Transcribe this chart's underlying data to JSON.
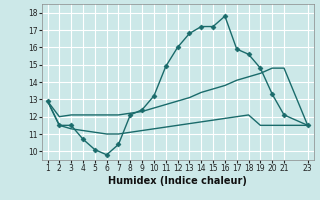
{
  "title": "",
  "xlabel": "Humidex (Indice chaleur)",
  "ylabel": "",
  "background_color": "#cce8e8",
  "grid_color": "#ffffff",
  "line_color": "#1a6b6b",
  "x_ticks": [
    1,
    2,
    3,
    4,
    5,
    6,
    7,
    8,
    9,
    10,
    11,
    12,
    13,
    14,
    15,
    16,
    17,
    18,
    19,
    20,
    21,
    23
  ],
  "ylim": [
    9.5,
    18.5
  ],
  "xlim": [
    0.5,
    23.5
  ],
  "yticks": [
    10,
    11,
    12,
    13,
    14,
    15,
    16,
    17,
    18
  ],
  "series": [
    {
      "x": [
        1,
        2,
        3,
        4,
        5,
        6,
        7,
        8,
        9,
        10,
        11,
        12,
        13,
        14,
        15,
        16,
        17,
        18,
        19,
        20,
        21,
        23
      ],
      "y": [
        12.9,
        11.5,
        11.5,
        10.7,
        10.1,
        9.8,
        10.4,
        12.1,
        12.4,
        13.2,
        14.9,
        16.0,
        16.8,
        17.2,
        17.2,
        17.8,
        15.9,
        15.6,
        14.8,
        13.3,
        12.1,
        11.5
      ],
      "marker": "D",
      "markersize": 2.5,
      "linewidth": 1.0
    },
    {
      "x": [
        1,
        2,
        3,
        4,
        5,
        6,
        7,
        8,
        9,
        10,
        11,
        12,
        13,
        14,
        15,
        16,
        17,
        18,
        19,
        20,
        21,
        23
      ],
      "y": [
        12.9,
        12.0,
        12.1,
        12.1,
        12.1,
        12.1,
        12.1,
        12.2,
        12.3,
        12.5,
        12.7,
        12.9,
        13.1,
        13.4,
        13.6,
        13.8,
        14.1,
        14.3,
        14.5,
        14.8,
        14.8,
        11.5
      ],
      "marker": null,
      "markersize": 0,
      "linewidth": 1.0
    },
    {
      "x": [
        1,
        2,
        3,
        4,
        5,
        6,
        7,
        8,
        9,
        10,
        11,
        12,
        13,
        14,
        15,
        16,
        17,
        18,
        19,
        20,
        21,
        23
      ],
      "y": [
        12.9,
        11.5,
        11.3,
        11.2,
        11.1,
        11.0,
        11.0,
        11.1,
        11.2,
        11.3,
        11.4,
        11.5,
        11.6,
        11.7,
        11.8,
        11.9,
        12.0,
        12.1,
        11.5,
        11.5,
        11.5,
        11.5
      ],
      "marker": null,
      "markersize": 0,
      "linewidth": 1.0
    }
  ]
}
